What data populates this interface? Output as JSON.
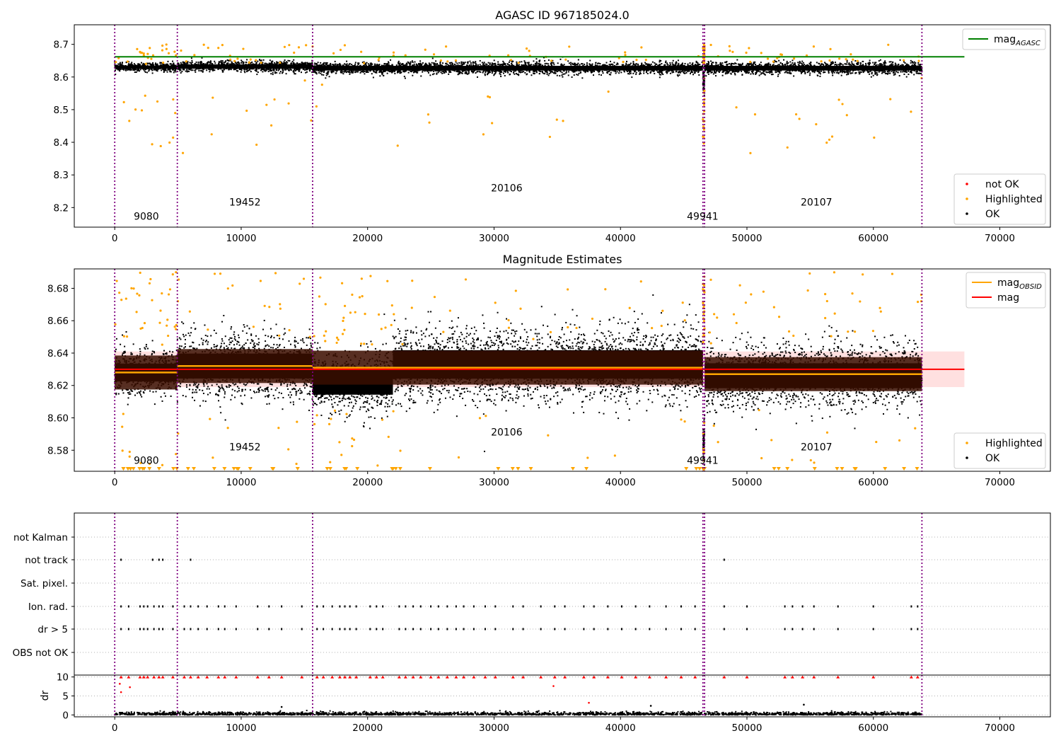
{
  "chart_data": [
    {
      "type": "scatter",
      "title": "AGASC ID 967185024.0",
      "xlim": [
        -3200,
        74000
      ],
      "ylim": [
        8.14,
        8.76
      ],
      "xticks": [
        0,
        10000,
        20000,
        30000,
        40000,
        50000,
        60000,
        70000
      ],
      "xtick_labels": [
        "0",
        "10000",
        "20000",
        "30000",
        "40000",
        "50000",
        "60000",
        "70000"
      ],
      "yticks": [
        8.2,
        8.3,
        8.4,
        8.5,
        8.6,
        8.7
      ],
      "ytick_labels": [
        "8.2",
        "8.3",
        "8.4",
        "8.5",
        "8.6",
        "8.7"
      ],
      "obs_boundaries": [
        0,
        4950,
        15650,
        46520,
        46650,
        63840
      ],
      "obs_labels": [
        {
          "text": "9080",
          "x": 2500,
          "y": 8.163
        },
        {
          "text": "19452",
          "x": 10300,
          "y": 8.206
        },
        {
          "text": "20106",
          "x": 31000,
          "y": 8.249
        },
        {
          "text": "49941",
          "x": 46500,
          "y": 8.163
        },
        {
          "text": "20107",
          "x": 55500,
          "y": 8.206
        }
      ],
      "mag_agasc": 8.662,
      "ok_band_segments": [
        {
          "x0": 0,
          "x1": 4950,
          "center": 8.63,
          "spread": 0.009
        },
        {
          "x0": 4950,
          "x1": 15650,
          "center": 8.632,
          "spread": 0.012
        },
        {
          "x0": 15650,
          "x1": 46520,
          "center": 8.627,
          "spread": 0.013
        },
        {
          "x0": 46520,
          "x1": 46650,
          "center": 8.585,
          "spread": 0.025
        },
        {
          "x0": 46650,
          "x1": 63840,
          "center": 8.627,
          "spread": 0.013
        }
      ],
      "legend_upper": {
        "position": "top-right",
        "entries": [
          {
            "label": "mag",
            "subscript": "AGASC",
            "color": "#008000"
          }
        ]
      },
      "legend_lower": {
        "position": "bottom-right",
        "entries": [
          {
            "label": "not OK",
            "color": "#ff0000"
          },
          {
            "label": "Highlighted",
            "color": "#ffa500"
          },
          {
            "label": "OK",
            "color": "#000000"
          }
        ]
      }
    },
    {
      "type": "scatter",
      "title": "Magnitude Estimates",
      "xlim": [
        -3200,
        74000
      ],
      "ylim": [
        8.567,
        8.692
      ],
      "xticks": [
        0,
        10000,
        20000,
        30000,
        40000,
        50000,
        60000,
        70000
      ],
      "xtick_labels": [
        "0",
        "10000",
        "20000",
        "30000",
        "40000",
        "50000",
        "60000",
        "70000"
      ],
      "yticks": [
        8.58,
        8.6,
        8.62,
        8.64,
        8.66,
        8.68
      ],
      "ytick_labels": [
        "8.58",
        "8.60",
        "8.62",
        "8.64",
        "8.66",
        "8.68"
      ],
      "obs_boundaries": [
        0,
        4950,
        15650,
        46520,
        46650,
        63840
      ],
      "obs_labels": [
        {
          "text": "9080",
          "x": 2500,
          "y": 8.5715
        },
        {
          "text": "19452",
          "x": 10300,
          "y": 8.58
        },
        {
          "text": "20106",
          "x": 31000,
          "y": 8.589
        },
        {
          "text": "49941",
          "x": 46500,
          "y": 8.5715
        },
        {
          "text": "20107",
          "x": 55500,
          "y": 8.58
        }
      ],
      "mag": 8.63,
      "mag_band": [
        8.619,
        8.641
      ],
      "mag_band_x": [
        0,
        67200
      ],
      "mag_obsid": [
        {
          "x0": 0,
          "x1": 4950,
          "value": 8.628
        },
        {
          "x0": 4950,
          "x1": 15650,
          "value": 8.632
        },
        {
          "x0": 15650,
          "x1": 46520,
          "value": 8.631
        },
        {
          "x0": 46650,
          "x1": 63840,
          "value": 8.627
        }
      ],
      "ok_band_segments": [
        {
          "x0": 0,
          "x1": 4950,
          "center": 8.628,
          "spread": 0.01
        },
        {
          "x0": 4950,
          "x1": 15650,
          "center": 8.632,
          "spread": 0.014
        },
        {
          "x0": 15650,
          "x1": 22000,
          "center": 8.622,
          "spread": 0.014
        },
        {
          "x0": 22000,
          "x1": 46520,
          "center": 8.633,
          "spread": 0.016
        },
        {
          "x0": 46520,
          "x1": 46650,
          "center": 8.585,
          "spread": 0.012
        },
        {
          "x0": 46650,
          "x1": 63840,
          "center": 8.626,
          "spread": 0.014
        }
      ],
      "legend_upper": {
        "position": "top-right",
        "entries": [
          {
            "label": "mag",
            "subscript": "OBSID",
            "color": "#ffa500"
          },
          {
            "label": "mag",
            "subscript": "",
            "color": "#ff0000"
          }
        ]
      },
      "legend_lower": {
        "position": "bottom-right",
        "entries": [
          {
            "label": "Highlighted",
            "color": "#ffa500"
          },
          {
            "label": "OK",
            "color": "#000000"
          }
        ]
      }
    },
    {
      "type": "scatter",
      "title": "",
      "xlim": [
        -3200,
        74000
      ],
      "categories": [
        "not Kalman",
        "not track",
        "Sat. pixel.",
        "Ion. rad.",
        "dr > 5",
        "OBS not OK"
      ],
      "obs_boundaries": [
        0,
        4950,
        15650,
        46520,
        46650,
        63840
      ],
      "flag_events": {
        "not track": [
          500,
          3000,
          3500,
          3800,
          6000,
          48200
        ],
        "Ion. rad.": [
          500,
          1100,
          2000,
          2300,
          2600,
          3100,
          3500,
          3800,
          4600,
          5500,
          6000,
          6600,
          7300,
          8200,
          8700,
          9600,
          11300,
          12200,
          13200,
          14800,
          16000,
          16500,
          17200,
          17800,
          18200,
          18600,
          19100,
          20200,
          20700,
          21200,
          22500,
          23000,
          23600,
          24200,
          25000,
          25600,
          26300,
          27000,
          27600,
          28400,
          29300,
          30100,
          31500,
          32300,
          33700,
          34800,
          35600,
          37100,
          37900,
          39000,
          40100,
          41200,
          42300,
          43600,
          44800,
          45900,
          48200,
          50000,
          53000,
          53600,
          54400,
          55300,
          57200,
          60000,
          63000,
          63500
        ],
        "dr > 5": [
          500,
          1100,
          2000,
          2300,
          2600,
          3100,
          3500,
          3800,
          4600,
          5500,
          6000,
          6600,
          7300,
          8200,
          8700,
          9600,
          11300,
          12200,
          13200,
          14800,
          16000,
          16500,
          17200,
          17800,
          18200,
          18600,
          19100,
          20200,
          20700,
          21200,
          22500,
          23000,
          23600,
          24200,
          25000,
          25600,
          26300,
          27000,
          27600,
          28400,
          29300,
          30100,
          31500,
          32300,
          33700,
          34800,
          35600,
          37100,
          37900,
          39000,
          40100,
          41200,
          42300,
          43600,
          44800,
          45900,
          48200,
          50000,
          53000,
          53600,
          54400,
          55300,
          57200,
          60000,
          63000,
          63500
        ]
      }
    },
    {
      "type": "scatter",
      "ylabel": "dr",
      "xlim": [
        -3200,
        74000
      ],
      "ylim": [
        -0.5,
        10.5
      ],
      "xticks": [
        0,
        10000,
        20000,
        30000,
        40000,
        50000,
        60000,
        70000
      ],
      "xtick_labels": [
        "0",
        "10000",
        "20000",
        "30000",
        "40000",
        "50000",
        "60000",
        "70000"
      ],
      "yticks": [
        0,
        5,
        10
      ],
      "ytick_labels": [
        "0",
        "5",
        "10"
      ],
      "obs_boundaries": [
        0,
        4950,
        15650,
        46520,
        46650,
        63840
      ],
      "capped_dr_x": [
        500,
        1100,
        2000,
        2300,
        2600,
        3100,
        3500,
        3800,
        4600,
        5500,
        6000,
        6600,
        7300,
        8200,
        8700,
        9600,
        11300,
        12200,
        13200,
        14800,
        16000,
        16500,
        17200,
        17800,
        18200,
        18600,
        19100,
        20200,
        20700,
        21200,
        22500,
        23000,
        23600,
        24200,
        25000,
        25600,
        26300,
        27000,
        27600,
        28400,
        29300,
        30100,
        31500,
        32300,
        33700,
        34800,
        35600,
        37100,
        37900,
        39000,
        40100,
        41200,
        42300,
        43600,
        44800,
        45900,
        48200,
        50000,
        53000,
        53600,
        54400,
        55300,
        57200,
        60000,
        63000,
        63500
      ],
      "outliers": [
        {
          "x": 400,
          "y": 8.2,
          "flag": "not OK"
        },
        {
          "x": 500,
          "y": 6.0,
          "flag": "not OK"
        },
        {
          "x": 1200,
          "y": 7.3,
          "flag": "not OK"
        },
        {
          "x": 34700,
          "y": 7.6,
          "flag": "not OK"
        },
        {
          "x": 37500,
          "y": 3.2,
          "flag": "not OK"
        },
        {
          "x": 13200,
          "y": 2.1,
          "flag": "OK"
        },
        {
          "x": 42400,
          "y": 2.4,
          "flag": "OK"
        },
        {
          "x": 54500,
          "y": 2.7,
          "flag": "OK"
        }
      ]
    }
  ]
}
